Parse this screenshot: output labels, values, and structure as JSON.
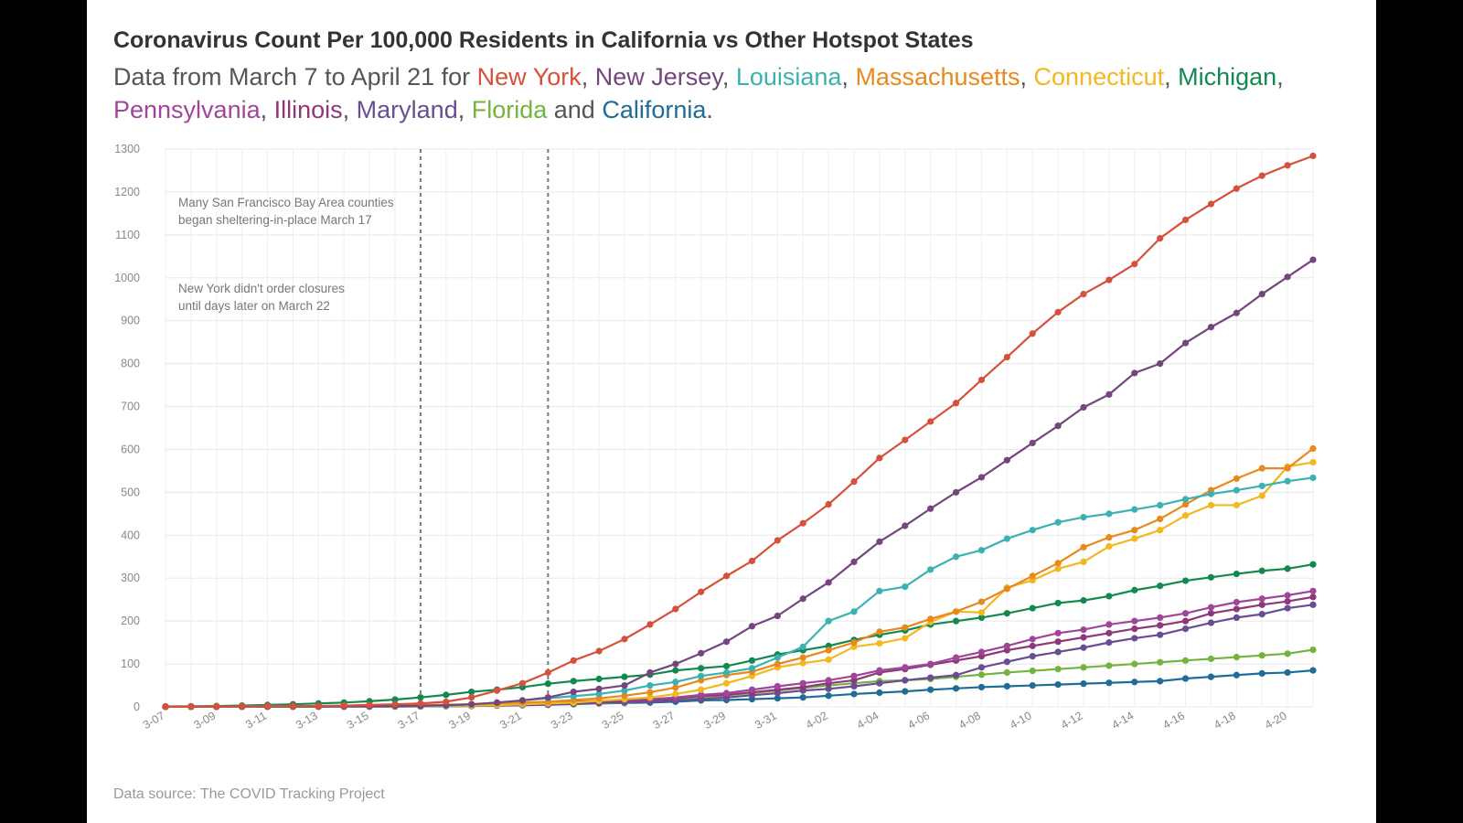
{
  "title": "Coronavirus Count Per 100,000 Residents in California vs Other Hotspot States",
  "subtitle": {
    "prefix": "Data from March 7 to April 21 for ",
    "parts": [
      {
        "name": "New York",
        "color": "#d6513b",
        "sep": ", "
      },
      {
        "name": "New Jersey",
        "color": "#74467e",
        "sep": ", "
      },
      {
        "name": "Louisiana",
        "color": "#3bb1b1",
        "sep": ", "
      },
      {
        "name": "Massachusetts",
        "color": "#e8891d",
        "sep": ", "
      },
      {
        "name": "Connecticut",
        "color": "#f2b81f",
        "sep": ", "
      },
      {
        "name": "Michigan",
        "color": "#13894f",
        "sep": ", "
      },
      {
        "name": "Pennsylvania",
        "color": "#a0469a",
        "sep": ", "
      },
      {
        "name": "Illinois",
        "color": "#8d3879",
        "sep": ", "
      },
      {
        "name": "Maryland",
        "color": "#6a4c95",
        "sep": ", "
      },
      {
        "name": "Florida",
        "color": "#73b33e",
        "sep": " and "
      },
      {
        "name": "California",
        "color": "#1f6d96",
        "sep": "."
      }
    ]
  },
  "source": "Data source: The COVID Tracking Project",
  "chart_data": {
    "type": "line",
    "x": [
      "3-07",
      "3-08",
      "3-09",
      "3-10",
      "3-11",
      "3-12",
      "3-13",
      "3-14",
      "3-15",
      "3-16",
      "3-17",
      "3-18",
      "3-19",
      "3-20",
      "3-21",
      "3-22",
      "3-23",
      "3-24",
      "3-25",
      "3-26",
      "3-27",
      "3-28",
      "3-29",
      "3-30",
      "3-31",
      "4-01",
      "4-02",
      "4-03",
      "4-04",
      "4-05",
      "4-06",
      "4-07",
      "4-08",
      "4-09",
      "4-10",
      "4-11",
      "4-12",
      "4-13",
      "4-14",
      "4-15",
      "4-16",
      "4-17",
      "4-18",
      "4-19",
      "4-20",
      "4-21"
    ],
    "x_tick_labels": [
      "3-07",
      "3-09",
      "3-11",
      "3-13",
      "3-15",
      "3-17",
      "3-19",
      "3-21",
      "3-23",
      "3-25",
      "3-27",
      "3-29",
      "3-31",
      "4-02",
      "4-04",
      "4-06",
      "4-08",
      "4-10",
      "4-12",
      "4-14",
      "4-16",
      "4-18",
      "4-20"
    ],
    "ylim": [
      0,
      1300
    ],
    "y_ticks": [
      0,
      100,
      200,
      300,
      400,
      500,
      600,
      700,
      800,
      900,
      1000,
      1100,
      1200,
      1300
    ],
    "grid": true,
    "vertical_markers": [
      "3-17",
      "3-22"
    ],
    "annotations": [
      {
        "lines": [
          "Many San Francisco Bay Area counties",
          "began sheltering-in-place March 17"
        ]
      },
      {
        "lines": [
          "New York didn't order closures",
          "until days later on March 22"
        ]
      }
    ],
    "series": [
      {
        "name": "New York",
        "color": "#d6513b",
        "values": [
          0.5,
          0.6,
          0.8,
          1.0,
          1.5,
          1.7,
          2.0,
          3.0,
          4.5,
          6.0,
          8.0,
          12,
          22,
          38,
          55,
          80,
          108,
          130,
          158,
          192,
          228,
          268,
          305,
          340,
          388,
          428,
          472,
          525,
          580,
          622,
          665,
          708,
          762,
          815,
          870,
          920,
          962,
          995,
          1032,
          1092,
          1135,
          1172,
          1208,
          1238,
          1262,
          1284
        ]
      },
      {
        "name": "New Jersey",
        "color": "#74467e",
        "values": [
          0.1,
          0.2,
          0.3,
          0.4,
          0.5,
          0.6,
          0.8,
          1.0,
          1.3,
          1.7,
          2.5,
          4,
          6,
          10,
          15,
          22,
          35,
          42,
          50,
          80,
          100,
          125,
          152,
          188,
          212,
          252,
          290,
          338,
          385,
          422,
          462,
          500,
          535,
          575,
          615,
          655,
          698,
          728,
          778,
          800,
          848,
          885,
          918,
          962,
          1002,
          1042
        ]
      },
      {
        "name": "Louisiana",
        "color": "#3bb1b1",
        "values": [
          0.1,
          0.1,
          0.2,
          0.2,
          0.3,
          0.4,
          0.6,
          0.8,
          1.0,
          1.5,
          2.0,
          3,
          6,
          10,
          15,
          20,
          25,
          30,
          38,
          50,
          58,
          72,
          80,
          90,
          115,
          140,
          200,
          222,
          270,
          280,
          320,
          350,
          365,
          392,
          412,
          430,
          442,
          450,
          460,
          470,
          484,
          496,
          505,
          515,
          526,
          534
        ]
      },
      {
        "name": "Massachusetts",
        "color": "#e8891d",
        "values": [
          0.5,
          0.6,
          0.8,
          1.0,
          1.3,
          1.6,
          2.0,
          2.5,
          3.0,
          3.5,
          4.0,
          5,
          6,
          8,
          10,
          12,
          16,
          20,
          26,
          34,
          45,
          62,
          74,
          82,
          100,
          115,
          132,
          150,
          175,
          185,
          205,
          222,
          245,
          275,
          305,
          335,
          372,
          395,
          412,
          438,
          472,
          505,
          532,
          556,
          556,
          602
        ]
      },
      {
        "name": "Connecticut",
        "color": "#f2b81f",
        "values": [
          0.1,
          0.1,
          0.1,
          0.2,
          0.2,
          0.3,
          0.4,
          0.5,
          0.7,
          1.0,
          1.5,
          2,
          3,
          4,
          6,
          8,
          10,
          14,
          18,
          22,
          30,
          40,
          55,
          72,
          92,
          102,
          110,
          140,
          148,
          160,
          198,
          222,
          220,
          278,
          295,
          322,
          338,
          374,
          392,
          412,
          446,
          470,
          470,
          492,
          560,
          570
        ]
      },
      {
        "name": "Michigan",
        "color": "#13894f",
        "values": [
          1.0,
          1.5,
          2.0,
          3.0,
          4.5,
          6.0,
          8.0,
          10,
          13,
          17,
          22,
          28,
          35,
          40,
          46,
          54,
          60,
          65,
          70,
          75,
          85,
          90,
          95,
          108,
          122,
          132,
          142,
          156,
          168,
          178,
          192,
          200,
          208,
          218,
          230,
          242,
          248,
          258,
          272,
          282,
          294,
          302,
          310,
          317,
          322,
          332
        ]
      },
      {
        "name": "Pennsylvania",
        "color": "#a0469a",
        "values": [
          0.1,
          0.1,
          0.2,
          0.2,
          0.3,
          0.4,
          0.5,
          0.7,
          1.0,
          1.3,
          1.8,
          2.5,
          3.5,
          5,
          7,
          9,
          12,
          14,
          16,
          18,
          22,
          28,
          32,
          40,
          48,
          55,
          62,
          72,
          85,
          92,
          100,
          115,
          128,
          142,
          158,
          172,
          180,
          192,
          200,
          208,
          218,
          232,
          244,
          252,
          260,
          270
        ]
      },
      {
        "name": "Illinois",
        "color": "#8d3879",
        "values": [
          0.1,
          0.1,
          0.2,
          0.2,
          0.3,
          0.4,
          0.5,
          0.6,
          0.8,
          1.0,
          1.4,
          2,
          3,
          4,
          6,
          8,
          10,
          12,
          14,
          16,
          20,
          25,
          28,
          34,
          40,
          46,
          55,
          62,
          80,
          88,
          98,
          108,
          118,
          132,
          142,
          152,
          162,
          172,
          182,
          190,
          200,
          218,
          228,
          238,
          246,
          256
        ]
      },
      {
        "name": "Maryland",
        "color": "#6a4c95",
        "values": [
          0.1,
          0.1,
          0.2,
          0.2,
          0.3,
          0.3,
          0.4,
          0.5,
          0.6,
          0.8,
          1.0,
          1.5,
          2,
          3,
          4,
          5,
          7,
          9,
          11,
          13,
          15,
          18,
          22,
          27,
          32,
          38,
          42,
          48,
          55,
          62,
          68,
          74,
          92,
          105,
          118,
          128,
          138,
          150,
          160,
          168,
          182,
          196,
          208,
          216,
          230,
          238
        ]
      },
      {
        "name": "Florida",
        "color": "#73b33e",
        "values": [
          0.1,
          0.1,
          0.1,
          0.2,
          0.2,
          0.3,
          0.3,
          0.4,
          0.5,
          0.7,
          1.0,
          1.3,
          2,
          3,
          4,
          5,
          6,
          8,
          10,
          14,
          17,
          22,
          27,
          32,
          38,
          44,
          50,
          55,
          60,
          62,
          65,
          70,
          75,
          80,
          84,
          88,
          92,
          96,
          100,
          104,
          108,
          112,
          116,
          120,
          124,
          133
        ]
      },
      {
        "name": "California",
        "color": "#1f6d96",
        "values": [
          0.3,
          0.4,
          0.5,
          0.6,
          0.7,
          0.9,
          1.0,
          1.2,
          1.4,
          1.6,
          2.0,
          2.5,
          3,
          4,
          5,
          6,
          7,
          8,
          9,
          10,
          12,
          15,
          16,
          18,
          20,
          22,
          26,
          30,
          33,
          36,
          40,
          43,
          46,
          48,
          50,
          52,
          54,
          56,
          58,
          60,
          66,
          70,
          74,
          78,
          80,
          85
        ]
      }
    ]
  }
}
